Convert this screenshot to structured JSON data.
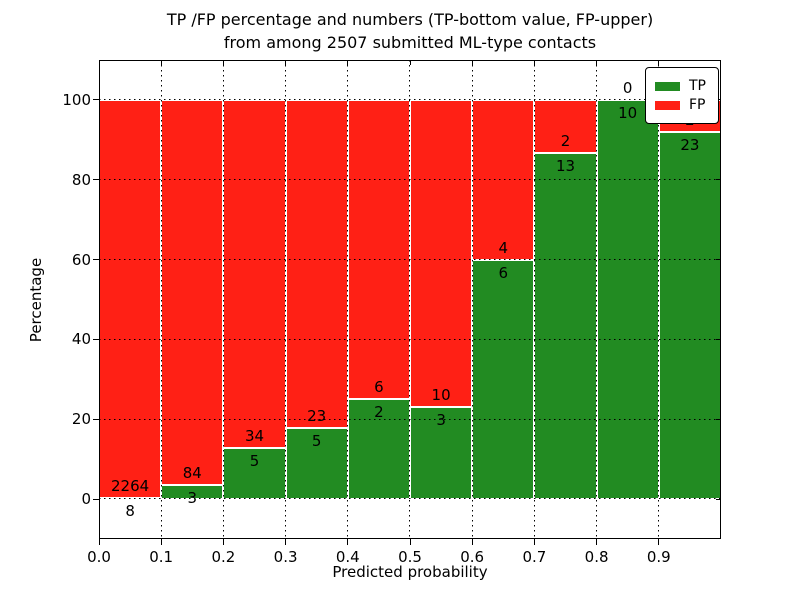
{
  "chart_data": {
    "type": "bar",
    "stacked": true,
    "normalized": "percent-of-bin-total",
    "title_line1": "TP /FP percentage and numbers (TP-bottom value, FP-upper)",
    "title_line2": "from among 2507 submitted ML-type contacts",
    "xlabel": "Predicted probability",
    "ylabel": "Percentage",
    "total_contacts": 2507,
    "bin_edges": [
      0.0,
      0.1,
      0.2,
      0.3,
      0.4,
      0.5,
      0.6,
      0.7,
      0.8,
      0.9,
      1.0
    ],
    "series": [
      {
        "name": "TP",
        "color": "#228b22",
        "values": [
          8,
          3,
          5,
          5,
          2,
          3,
          6,
          13,
          10,
          23
        ]
      },
      {
        "name": "FP",
        "color": "#ff2015",
        "values": [
          2264,
          84,
          34,
          23,
          6,
          10,
          4,
          2,
          0,
          2
        ]
      }
    ],
    "bar_edge_color": "#ffffff",
    "xticks": [
      {
        "label": "0.0",
        "value": 0.0
      },
      {
        "label": "0.1",
        "value": 0.1
      },
      {
        "label": "0.2",
        "value": 0.2
      },
      {
        "label": "0.3",
        "value": 0.3
      },
      {
        "label": "0.4",
        "value": 0.4
      },
      {
        "label": "0.5",
        "value": 0.5
      },
      {
        "label": "0.6",
        "value": 0.6
      },
      {
        "label": "0.7",
        "value": 0.7
      },
      {
        "label": "0.8",
        "value": 0.8
      },
      {
        "label": "0.9",
        "value": 0.9
      }
    ],
    "yticks": [
      {
        "label": "0",
        "value": 0
      },
      {
        "label": "20",
        "value": 20
      },
      {
        "label": "40",
        "value": 40
      },
      {
        "label": "60",
        "value": 60
      },
      {
        "label": "80",
        "value": 80
      },
      {
        "label": "100",
        "value": 100
      }
    ],
    "xlim": [
      0.0,
      1.0
    ],
    "ylim": [
      -10,
      110
    ],
    "grid": true,
    "grid_style": "dotted",
    "legend_position": "upper right",
    "legend": [
      {
        "label": "TP",
        "color": "#228b22"
      },
      {
        "label": "FP",
        "color": "#ff2015"
      }
    ]
  }
}
